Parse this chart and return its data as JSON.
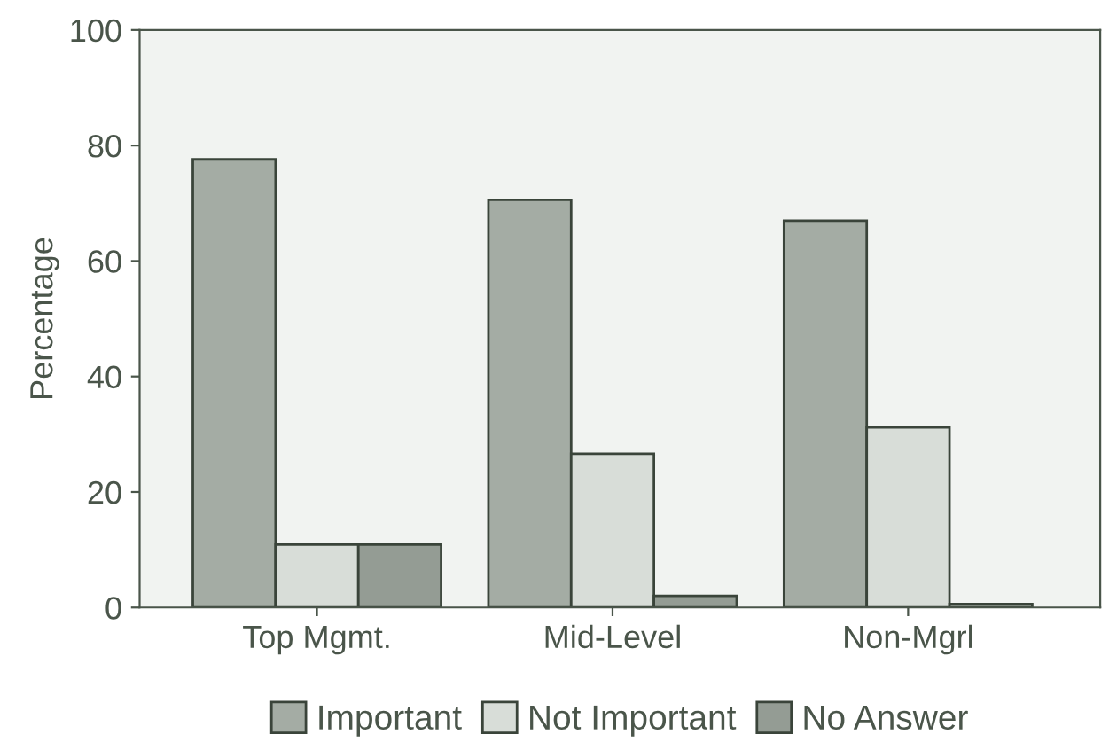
{
  "chart_data": {
    "type": "bar",
    "ylabel": "Percentage",
    "categories": [
      "Top Mgmt.",
      "Mid-Level",
      "Non-Mgrl"
    ],
    "series": [
      {
        "name": "Important",
        "color": "#a4aca4",
        "values": [
          77.6,
          70.6,
          67.0
        ]
      },
      {
        "name": "Not Important",
        "color": "#d8ddd8",
        "values": [
          10.9,
          26.6,
          31.2
        ]
      },
      {
        "name": "No Answer",
        "color": "#949c94",
        "values": [
          10.9,
          2.0,
          0.6
        ]
      }
    ],
    "ylim": [
      0,
      100
    ],
    "yticks": [
      0,
      20,
      40,
      60,
      80,
      100
    ],
    "grid": false,
    "legend": "bottom"
  }
}
